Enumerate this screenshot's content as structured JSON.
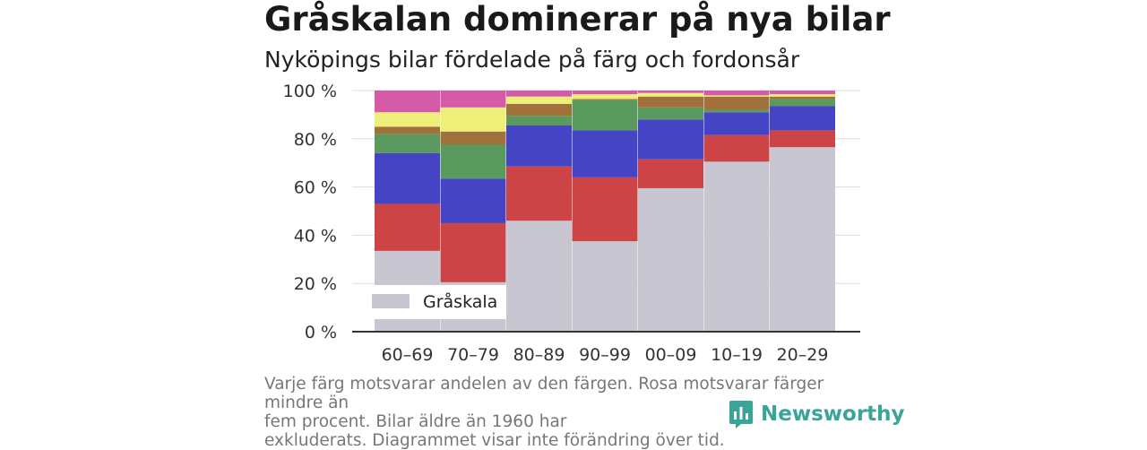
{
  "title": "Gråskalan dominerar på nya bilar",
  "subtitle": "Nyköpings bilar fördelade på färg och fordonsår",
  "footnote_lines": [
    "Varje färg motsvarar andelen av den färgen. Rosa motsvarar färger mindre än",
    "fem procent. Bilar äldre än 1960 har",
    "exkluderats. Diagrammet visar inte förändring över tid."
  ],
  "brand": {
    "name": "Newsworthy",
    "icon": "newsworthy-logo-icon",
    "color": "#3aa39a"
  },
  "chart_data": {
    "type": "bar",
    "stacked": true,
    "percent": true,
    "categories": [
      "60–69",
      "70–79",
      "80–89",
      "90–99",
      "00–09",
      "10–19",
      "20–29"
    ],
    "ylim": [
      0,
      100
    ],
    "yticks": [
      0,
      20,
      40,
      60,
      80,
      100
    ],
    "ytick_labels": [
      "0 %",
      "20 %",
      "40 %",
      "60 %",
      "80 %",
      "100 %"
    ],
    "grid": true,
    "legend": {
      "position": "bottom-left",
      "entries": [
        "Gråskala"
      ]
    },
    "series": [
      {
        "name": "Gråskala",
        "color": "#c8c6d1",
        "values": [
          33.5,
          20.5,
          46,
          37.5,
          59.5,
          70.5,
          76.5
        ]
      },
      {
        "color": "#cc4446",
        "values": [
          19.5,
          24.5,
          22.5,
          26.5,
          12,
          11,
          7
        ]
      },
      {
        "color": "#4444c4",
        "values": [
          21,
          18.5,
          17,
          19.5,
          16.5,
          9.5,
          10
        ]
      },
      {
        "color": "#5a9a5f",
        "values": [
          8,
          14,
          4,
          12.5,
          5,
          1,
          3
        ]
      },
      {
        "color": "#a0713b",
        "values": [
          3,
          5.5,
          5,
          0.5,
          4.5,
          5.5,
          1
        ]
      },
      {
        "color": "#edef78",
        "values": [
          6,
          10,
          3,
          2,
          1.5,
          0.5,
          1
        ]
      },
      {
        "color": "#d55ba9",
        "values": [
          9,
          7,
          2.5,
          1.5,
          1,
          2,
          1.5
        ]
      }
    ]
  }
}
